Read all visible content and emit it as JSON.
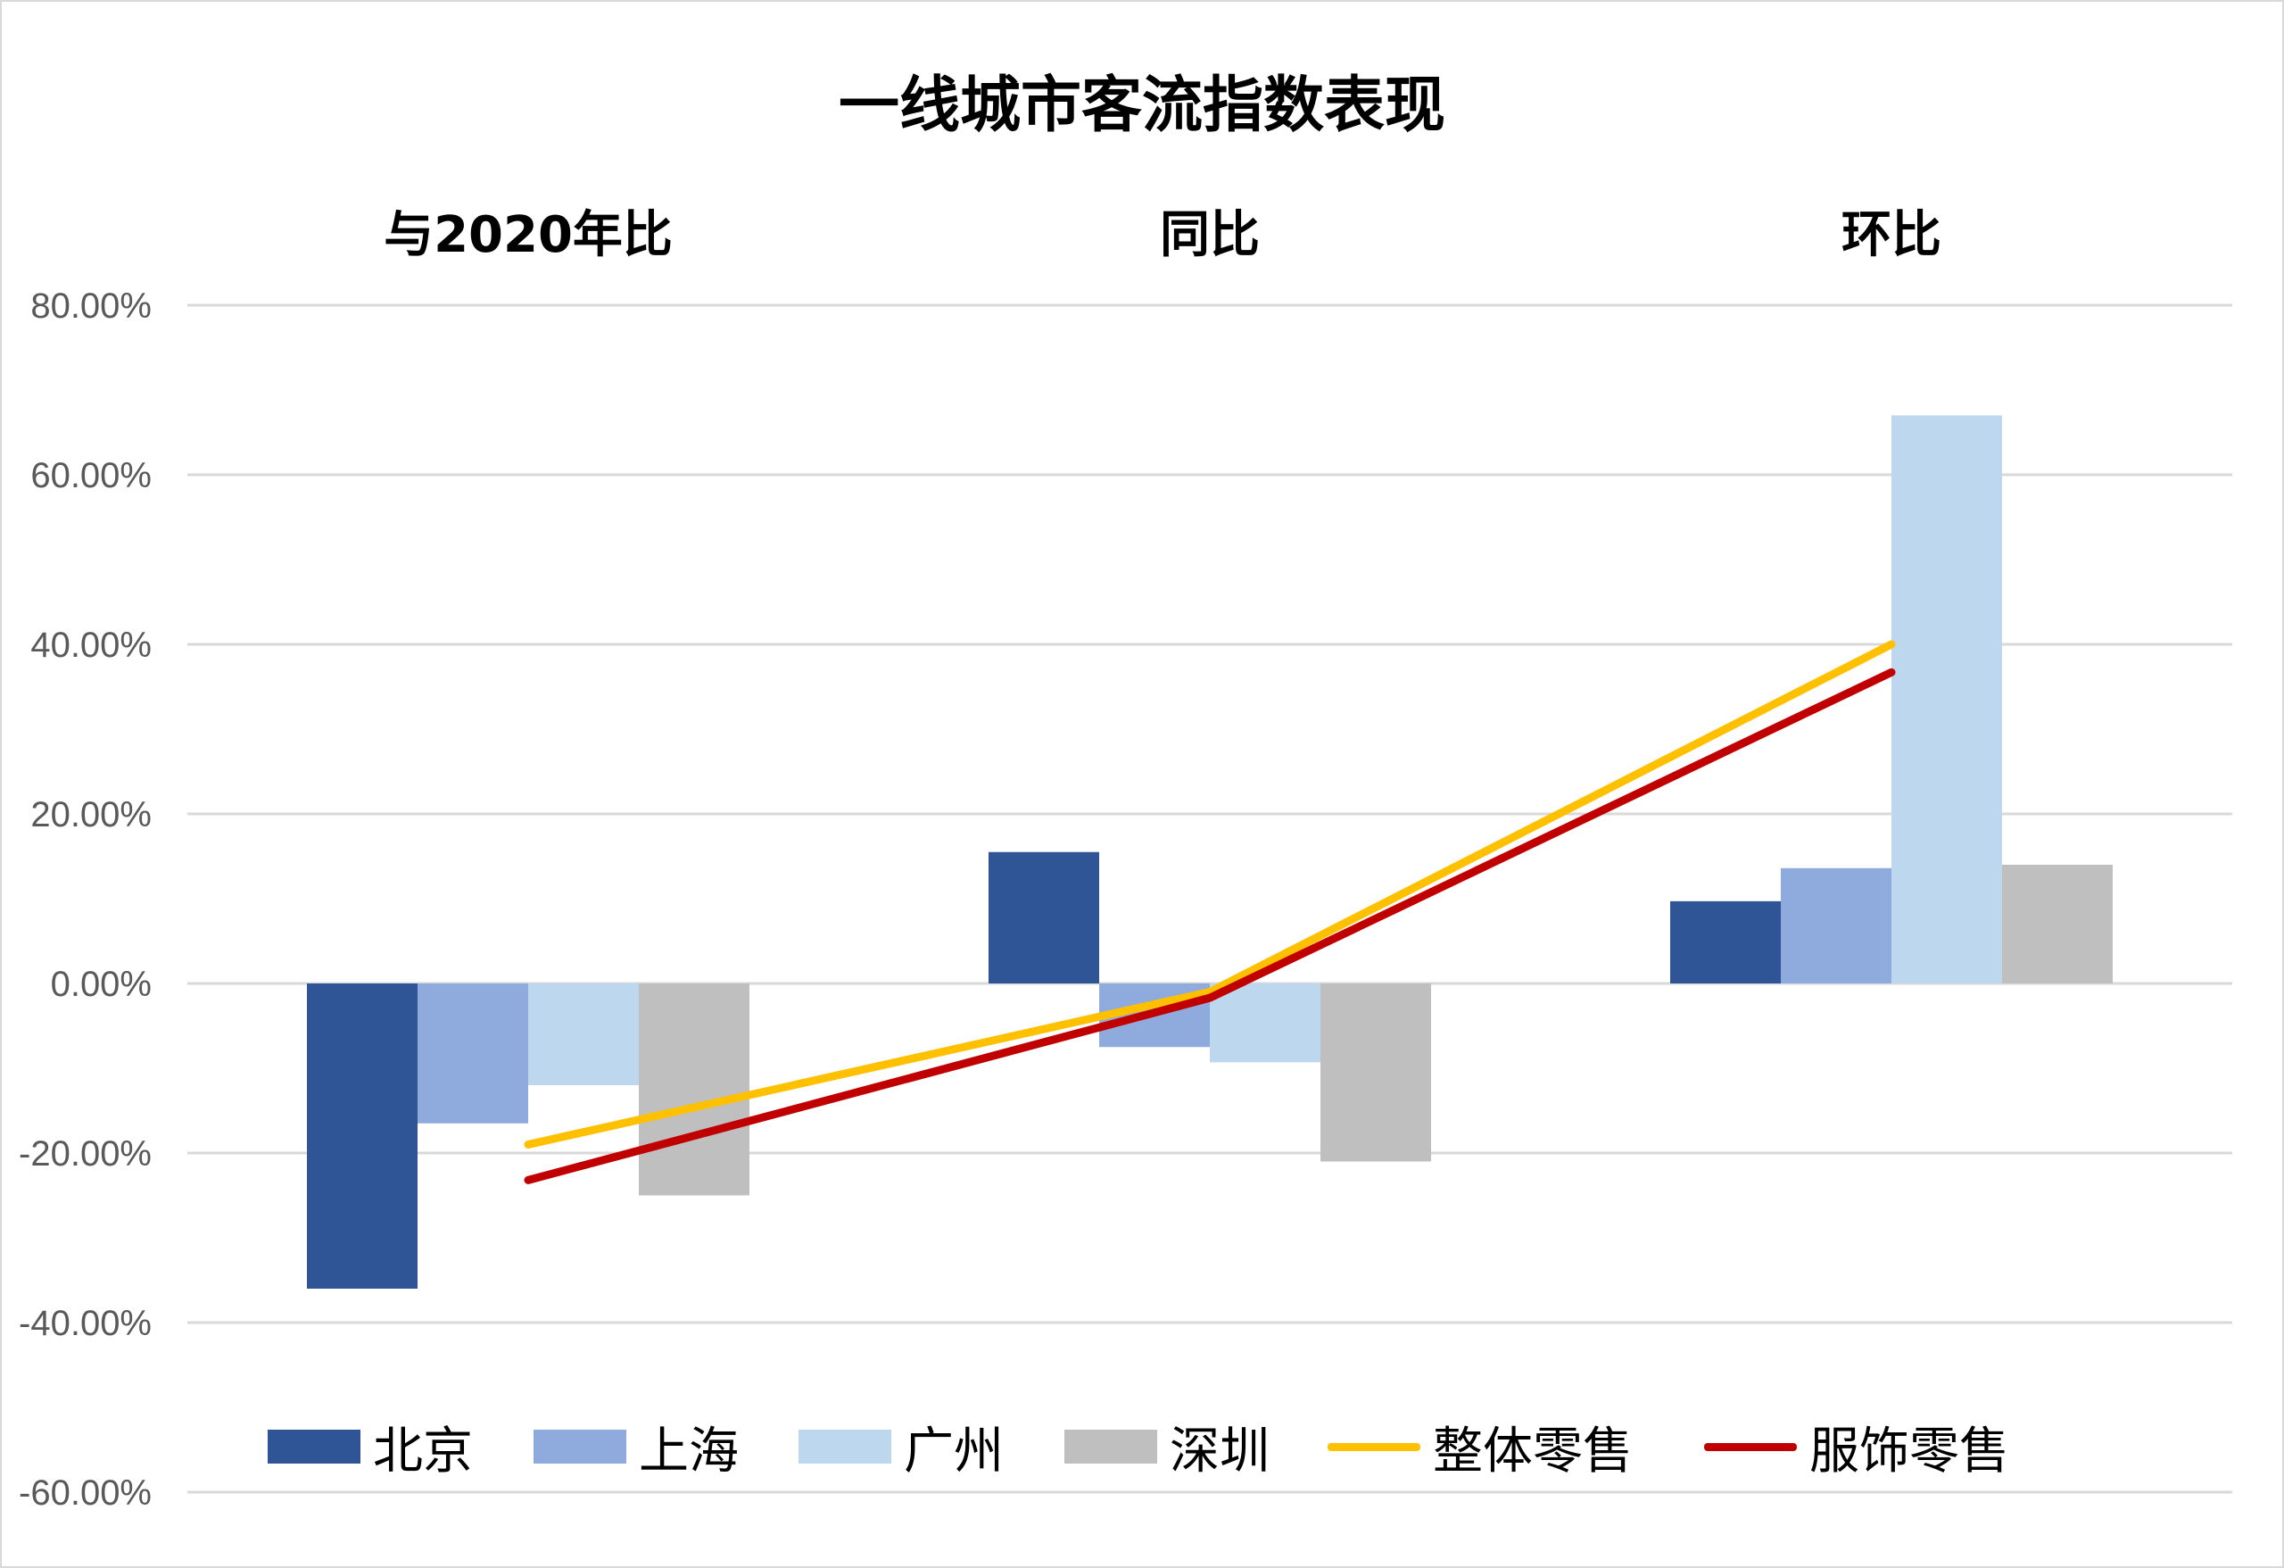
{
  "chart_data": {
    "type": "bar",
    "title": "一线城市客流指数表现",
    "categories": [
      "与2020年比",
      "同比",
      "环比"
    ],
    "ylim": [
      -0.6,
      0.8
    ],
    "yticks": [
      "-60.00%",
      "-40.00%",
      "-20.00%",
      "0.00%",
      "20.00%",
      "40.00%",
      "60.00%",
      "80.00%"
    ],
    "ytick_values": [
      -0.6,
      -0.4,
      -0.2,
      0.0,
      0.2,
      0.4,
      0.6,
      0.8
    ],
    "grid": true,
    "legend_position": "bottom",
    "series": [
      {
        "name": "北京",
        "kind": "bar",
        "color": "#2f5597",
        "values": [
          -0.36,
          0.155,
          0.097
        ]
      },
      {
        "name": "上海",
        "kind": "bar",
        "color": "#8faadc",
        "values": [
          -0.165,
          -0.075,
          0.136
        ]
      },
      {
        "name": "广州",
        "kind": "bar",
        "color": "#bdd7ee",
        "values": [
          -0.12,
          -0.093,
          0.67
        ]
      },
      {
        "name": "深圳",
        "kind": "bar",
        "color": "#bfbfbf",
        "values": [
          -0.25,
          -0.21,
          0.14
        ]
      },
      {
        "name": "整体零售",
        "kind": "line",
        "color": "#ffc000",
        "values": [
          -0.19,
          -0.01,
          0.4
        ]
      },
      {
        "name": "服饰零售",
        "kind": "line",
        "color": "#c00000",
        "values": [
          -0.232,
          -0.017,
          0.367
        ]
      }
    ]
  }
}
